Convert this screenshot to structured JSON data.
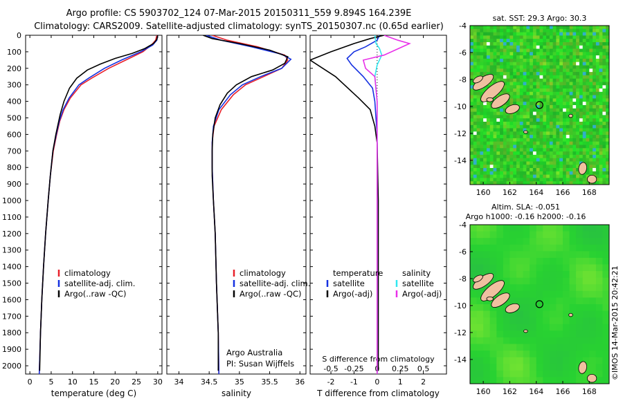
{
  "header": {
    "title_line1": "Argo profile: CS 5903702_124 07-Mar-2015 20150311_559 9.894S 164.239E",
    "title_line2": "Climatology: CARS2009. Satellite-adjusted climatology: synTS_20150307.nc (0.65d earlier)"
  },
  "credit": {
    "org": "Argo Australia",
    "pi": "PI: Susan Wijffels",
    "stamp": "©IMOS 14-Mar-2015 20:42:21"
  },
  "colors": {
    "climatology": "#e8202a",
    "satellite": "#1530e0",
    "argo": "#000000",
    "sal_satellite": "#30e8f0",
    "sal_argo": "#e830e8",
    "land": "#f0c0a0",
    "ocean_base": "#38c838"
  },
  "chart_data": [
    {
      "type": "line",
      "title": "",
      "xlabel": "temperature (deg C)",
      "ylabel": "",
      "xlim": [
        -1,
        31
      ],
      "ylim": [
        2050,
        0
      ],
      "xticks": [
        0,
        5,
        10,
        15,
        20,
        25,
        30
      ],
      "yticks": [
        0,
        100,
        200,
        300,
        400,
        500,
        600,
        700,
        800,
        900,
        1000,
        1100,
        1200,
        1300,
        1400,
        1500,
        1600,
        1700,
        1800,
        1900,
        2000
      ],
      "legend": [
        "climatology",
        "satellite-adj. clim.",
        "Argo(..raw -QC)"
      ],
      "legend_placement": "lower-center",
      "series": [
        {
          "name": "climatology",
          "color": "#e8202a",
          "points": [
            [
              29.8,
              0
            ],
            [
              29.5,
              30
            ],
            [
              28.5,
              60
            ],
            [
              26.5,
              100
            ],
            [
              22.5,
              150
            ],
            [
              18.5,
              200
            ],
            [
              14.5,
              260
            ],
            [
              12.0,
              300
            ],
            [
              9.5,
              380
            ],
            [
              8.0,
              450
            ],
            [
              7.0,
              520
            ],
            [
              6.3,
              600
            ],
            [
              5.5,
              700
            ],
            [
              4.8,
              850
            ],
            [
              4.3,
              1000
            ],
            [
              3.7,
              1200
            ],
            [
              3.2,
              1400
            ],
            [
              2.8,
              1600
            ],
            [
              2.5,
              1800
            ],
            [
              2.2,
              2050
            ]
          ]
        },
        {
          "name": "satellite-adj. clim.",
          "color": "#1530e0",
          "points": [
            [
              30.0,
              0
            ],
            [
              29.8,
              30
            ],
            [
              28.8,
              60
            ],
            [
              26.0,
              100
            ],
            [
              21.5,
              150
            ],
            [
              17.5,
              200
            ],
            [
              13.8,
              260
            ],
            [
              11.5,
              300
            ],
            [
              9.2,
              380
            ],
            [
              7.8,
              450
            ],
            [
              6.9,
              520
            ],
            [
              6.2,
              600
            ],
            [
              5.4,
              700
            ],
            [
              4.8,
              850
            ],
            [
              4.3,
              1000
            ],
            [
              3.7,
              1200
            ],
            [
              3.2,
              1400
            ],
            [
              2.8,
              1600
            ],
            [
              2.5,
              1800
            ],
            [
              2.2,
              2050
            ]
          ]
        },
        {
          "name": "Argo(..raw -QC)",
          "color": "#000000",
          "points": [
            [
              30.0,
              0
            ],
            [
              29.8,
              25
            ],
            [
              29.0,
              50
            ],
            [
              27.0,
              80
            ],
            [
              24.0,
              110
            ],
            [
              20.0,
              140
            ],
            [
              16.5,
              175
            ],
            [
              13.5,
              210
            ],
            [
              11.0,
              260
            ],
            [
              9.3,
              320
            ],
            [
              8.0,
              400
            ],
            [
              7.1,
              480
            ],
            [
              6.6,
              540
            ],
            [
              6.1,
              600
            ],
            [
              5.4,
              700
            ],
            [
              4.8,
              850
            ],
            [
              4.3,
              1000
            ],
            [
              3.7,
              1200
            ],
            [
              3.2,
              1400
            ],
            [
              2.8,
              1600
            ],
            [
              2.5,
              1800
            ],
            [
              2.3,
              2030
            ]
          ]
        }
      ]
    },
    {
      "type": "line",
      "title": "",
      "xlabel": "salinity",
      "ylabel": "",
      "xlim": [
        33.8,
        36.1
      ],
      "ylim": [
        2050,
        0
      ],
      "xticks": [
        34,
        34.5,
        35,
        35.5,
        36
      ],
      "legend": [
        "climatology",
        "satellite-adj. clim.",
        "Argo(..raw -QC)"
      ],
      "legend_placement": "lower-center",
      "series": [
        {
          "name": "climatology",
          "color": "#e8202a",
          "points": [
            [
              34.55,
              0
            ],
            [
              34.8,
              30
            ],
            [
              35.3,
              70
            ],
            [
              35.75,
              120
            ],
            [
              35.8,
              150
            ],
            [
              35.7,
              200
            ],
            [
              35.4,
              250
            ],
            [
              35.1,
              300
            ],
            [
              34.9,
              360
            ],
            [
              34.7,
              450
            ],
            [
              34.58,
              550
            ],
            [
              34.55,
              650
            ],
            [
              34.55,
              800
            ],
            [
              34.57,
              1000
            ],
            [
              34.6,
              1200
            ],
            [
              34.62,
              1500
            ],
            [
              34.65,
              1800
            ],
            [
              34.66,
              2050
            ]
          ]
        },
        {
          "name": "satellite-adj. clim.",
          "color": "#1530e0",
          "points": [
            [
              34.45,
              0
            ],
            [
              34.7,
              30
            ],
            [
              35.2,
              70
            ],
            [
              35.7,
              115
            ],
            [
              35.85,
              145
            ],
            [
              35.7,
              200
            ],
            [
              35.35,
              250
            ],
            [
              35.05,
              300
            ],
            [
              34.85,
              360
            ],
            [
              34.66,
              450
            ],
            [
              34.57,
              550
            ],
            [
              34.55,
              650
            ],
            [
              34.55,
              800
            ],
            [
              34.57,
              1000
            ],
            [
              34.6,
              1200
            ],
            [
              34.62,
              1500
            ],
            [
              34.65,
              1800
            ],
            [
              34.66,
              2050
            ]
          ]
        },
        {
          "name": "Argo(..raw -QC)",
          "color": "#000000",
          "points": [
            [
              34.4,
              0
            ],
            [
              34.55,
              20
            ],
            [
              35.0,
              50
            ],
            [
              35.5,
              90
            ],
            [
              35.8,
              130
            ],
            [
              35.75,
              170
            ],
            [
              35.55,
              210
            ],
            [
              35.2,
              250
            ],
            [
              34.95,
              300
            ],
            [
              34.8,
              350
            ],
            [
              34.68,
              420
            ],
            [
              34.6,
              500
            ],
            [
              34.56,
              600
            ],
            [
              34.55,
              700
            ],
            [
              34.55,
              850
            ],
            [
              34.57,
              1000
            ],
            [
              34.6,
              1200
            ],
            [
              34.62,
              1500
            ],
            [
              34.65,
              1800
            ],
            [
              34.65,
              2030
            ]
          ]
        }
      ]
    },
    {
      "type": "line",
      "title": "",
      "xlabel": "T difference from climatology",
      "xlabel_top": "S difference from climatology",
      "ylabel": "",
      "xlim": [
        -2.9,
        3.0
      ],
      "ylim": [
        2050,
        0
      ],
      "xticks": [
        -2,
        -1,
        0,
        1,
        2
      ],
      "xticks_top": [
        -0.5,
        -0.25,
        0,
        0.25,
        0.5
      ],
      "legend_left_title": "temperature",
      "legend_left": [
        "satellite",
        "Argo(-adj)"
      ],
      "legend_right_title": "salinity",
      "legend_right": [
        "satellite",
        "Argo(-adj)"
      ],
      "legend_placement": "lower-center",
      "series": [
        {
          "name": "temperature satellite",
          "color": "#1530e0",
          "points": [
            [
              0.1,
              0
            ],
            [
              0.0,
              30
            ],
            [
              -0.5,
              70
            ],
            [
              -1.0,
              100
            ],
            [
              -1.3,
              140
            ],
            [
              -1.1,
              180
            ],
            [
              -0.6,
              250
            ],
            [
              -0.2,
              320
            ],
            [
              -0.1,
              400
            ],
            [
              0.0,
              600
            ],
            [
              0.0,
              2050
            ]
          ]
        },
        {
          "name": "temperature Argo(-adj)",
          "color": "#000000",
          "points": [
            [
              0.3,
              0
            ],
            [
              -0.3,
              20
            ],
            [
              -1.0,
              50
            ],
            [
              -2.0,
              100
            ],
            [
              -2.9,
              150
            ],
            [
              -1.8,
              250
            ],
            [
              -0.8,
              380
            ],
            [
              -0.3,
              450
            ],
            [
              -0.1,
              550
            ],
            [
              0.0,
              650
            ],
            [
              0.05,
              1000
            ],
            [
              0.05,
              2030
            ]
          ]
        },
        {
          "name": "salinity satellite",
          "color": "#30e8f0",
          "points": [
            [
              -0.1,
              0
            ],
            [
              -0.05,
              50
            ],
            [
              0.1,
              80
            ],
            [
              0.2,
              120
            ],
            [
              0.0,
              180
            ],
            [
              -0.1,
              250
            ],
            [
              0.0,
              400
            ],
            [
              0.0,
              2050
            ]
          ]
        },
        {
          "name": "salinity Argo(-adj)",
          "color": "#e830e8",
          "points": [
            [
              0.3,
              0
            ],
            [
              0.9,
              30
            ],
            [
              1.4,
              50
            ],
            [
              0.3,
              120
            ],
            [
              -0.6,
              150
            ],
            [
              -0.5,
              200
            ],
            [
              -0.1,
              250
            ],
            [
              0.0,
              400
            ],
            [
              0.0,
              2050
            ]
          ]
        }
      ]
    },
    {
      "type": "heatmap",
      "title": "sat. SST: 29.3 Argo: 30.3",
      "xlim": [
        159,
        169.5
      ],
      "ylim": [
        -15.8,
        -4
      ],
      "xticks": [
        160,
        162,
        164,
        166,
        168
      ],
      "yticks": [
        -4,
        -6,
        -8,
        -10,
        -12,
        -14
      ],
      "marker": {
        "lon": 164.239,
        "lat": -9.894
      }
    },
    {
      "type": "heatmap",
      "title_line1": "Altim. SLA: -0.051",
      "title_line2": "Argo h1000: -0.16 h2000: -0.16",
      "xlim": [
        159,
        169.5
      ],
      "ylim": [
        -15.8,
        -4
      ],
      "xticks": [
        160,
        162,
        164,
        166,
        168
      ],
      "yticks": [
        -4,
        -6,
        -8,
        -10,
        -12,
        -14
      ],
      "marker": {
        "lon": 164.239,
        "lat": -9.894
      }
    }
  ]
}
